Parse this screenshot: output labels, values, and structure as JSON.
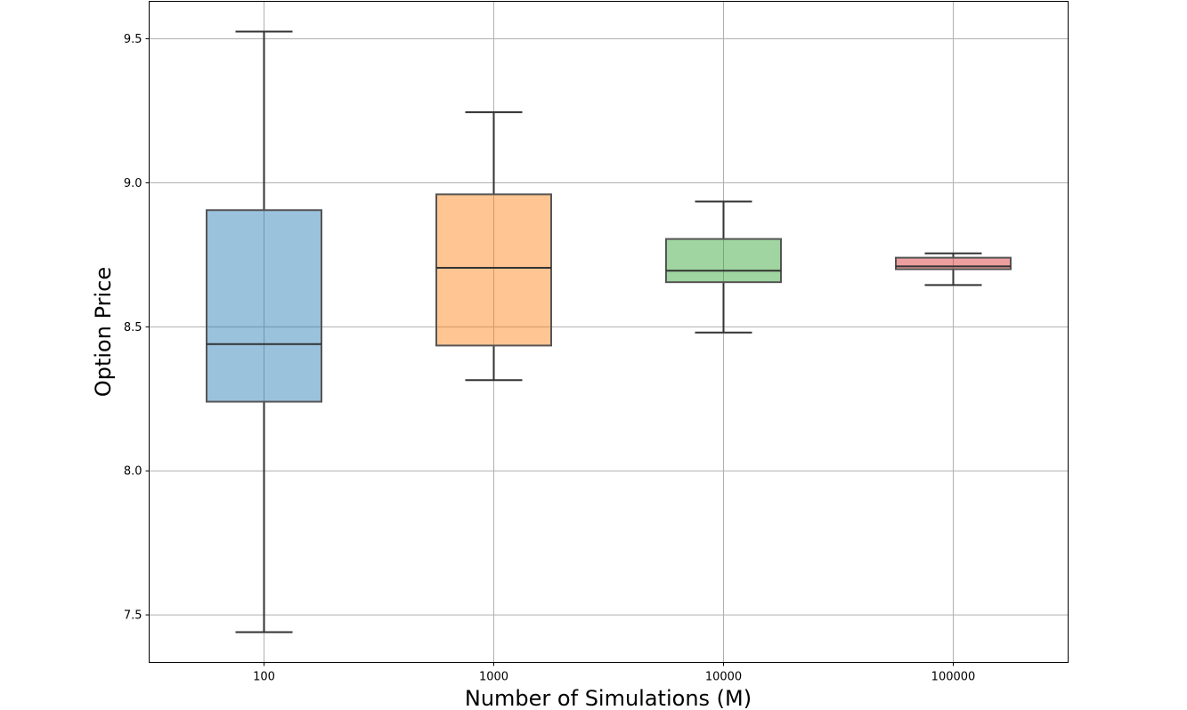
{
  "chart_data": {
    "type": "box",
    "xlabel": "Number of Simulations (M)",
    "ylabel": "Option Price",
    "ylim": [
      7.335,
      9.63
    ],
    "yticks": [
      "7.5",
      "8.0",
      "8.5",
      "9.0",
      "9.5"
    ],
    "grid": true,
    "categories": [
      "100",
      "1000",
      "10000",
      "100000"
    ],
    "boxes": [
      {
        "category": "100",
        "whisker_low": 7.44,
        "q1": 8.24,
        "median": 8.44,
        "q3": 8.905,
        "whisker_high": 9.525,
        "color": "#1f77b4"
      },
      {
        "category": "1000",
        "whisker_low": 8.315,
        "q1": 8.435,
        "median": 8.705,
        "q3": 8.96,
        "whisker_high": 9.245,
        "color": "#ff7f0e"
      },
      {
        "category": "10000",
        "whisker_low": 8.48,
        "q1": 8.655,
        "median": 8.695,
        "q3": 8.805,
        "whisker_high": 8.935,
        "color": "#2ca02c"
      },
      {
        "category": "100000",
        "whisker_low": 8.645,
        "q1": 8.7,
        "median": 8.71,
        "q3": 8.74,
        "whisker_high": 8.755,
        "color": "#d62728"
      }
    ]
  }
}
